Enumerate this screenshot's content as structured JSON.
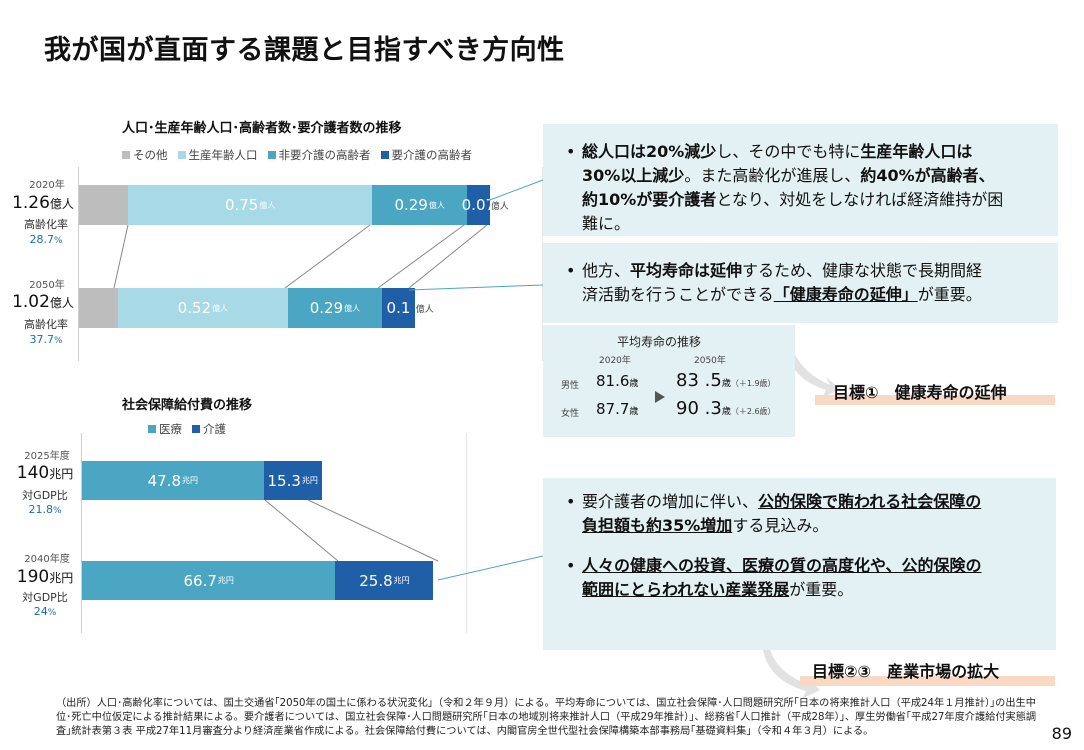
{
  "page_title": "我が国が直面する課題と目指すべき方向性",
  "colors": {
    "other": "#bdbdbd",
    "working": "#a8d9e6",
    "noncare": "#4aa6c2",
    "care": "#1f5fa8",
    "medical": "#4aa6c2",
    "kaigo": "#1f5fa8",
    "box": "#e4f1f4",
    "goal_bar": "#f9d9c3"
  },
  "chart_data": [
    {
      "type": "bar",
      "orientation": "horizontal-stacked",
      "title": "人口･生産年齢人口･高齢者数･要介護者数の推移",
      "legend": [
        "その他",
        "生産年齢人口",
        "非要介護の高齢者",
        "要介護の高齢者"
      ],
      "legend_position": "top",
      "rows": [
        {
          "year": "2020年",
          "total": "1.26",
          "total_unit": "億人",
          "ratio_label": "高齢化率",
          "ratio": "28.7",
          "ratio_unit": "%",
          "values": [
            0.15,
            0.75,
            0.29,
            0.07
          ],
          "labels": [
            null,
            {
              "v": "0.75",
              "u": "億人"
            },
            {
              "v": "0.29",
              "u": "億人"
            },
            {
              "v": "0.07",
              "u": "億人"
            }
          ]
        },
        {
          "year": "2050年",
          "total": "1.02",
          "total_unit": "億人",
          "ratio_label": "高齢化率",
          "ratio": "37.7",
          "ratio_unit": "%",
          "values": [
            0.12,
            0.52,
            0.29,
            0.1
          ],
          "labels": [
            null,
            {
              "v": "0.52",
              "u": "億人"
            },
            {
              "v": "0.29",
              "u": "億人"
            },
            {
              "v": "0.1",
              "u": "億人"
            }
          ]
        }
      ],
      "unit": "億人"
    },
    {
      "type": "bar",
      "orientation": "horizontal-stacked",
      "title": "社会保障給付費の推移",
      "legend": [
        "医療",
        "介護"
      ],
      "legend_position": "top",
      "rows": [
        {
          "year": "2025年度",
          "total": "140",
          "total_unit": "兆円",
          "ratio_label": "対GDP比",
          "ratio": "21.8",
          "ratio_unit": "%",
          "values": [
            47.8,
            15.3
          ],
          "labels": [
            {
              "v": "47.8",
              "u": "兆円"
            },
            {
              "v": "15.3",
              "u": "兆円"
            }
          ]
        },
        {
          "year": "2040年度",
          "total": "190",
          "total_unit": "兆円",
          "ratio_label": "対GDP比",
          "ratio": "24",
          "ratio_unit": "%",
          "values": [
            66.7,
            25.8
          ],
          "labels": [
            {
              "v": "66.7",
              "u": "兆円"
            },
            {
              "v": "25.8",
              "u": "兆円"
            }
          ]
        }
      ],
      "unit": "兆円"
    }
  ],
  "box1": {
    "dot": "•",
    "line1": [
      {
        "t": "総人口は20%減少",
        "b": true
      },
      {
        "t": "し、その中でも特に"
      },
      {
        "t": "生産年齢人口は",
        "b": true
      }
    ],
    "line2": [
      {
        "t": "30%以上減少",
        "b": true
      },
      {
        "t": "。また高齢化が進展し、"
      },
      {
        "t": "約40%が高齢者、",
        "b": true
      }
    ],
    "line3": [
      {
        "t": "約10%が要介護者",
        "b": true
      },
      {
        "t": "となり、対処をしなければ経済維持が困"
      }
    ],
    "line4": [
      {
        "t": "難に。"
      }
    ]
  },
  "box2": {
    "dot": "•",
    "line1": [
      {
        "t": "他方、"
      },
      {
        "t": "平均寿命は延伸",
        "b": true
      },
      {
        "t": "するため、健康な状態で長期間経"
      }
    ],
    "line2": [
      {
        "t": "済活動を行うことができる"
      },
      {
        "t": "「健康寿命の延伸」",
        "u": true
      },
      {
        "t": "が重要。"
      }
    ]
  },
  "life": {
    "title": "平均寿命の推移",
    "y1": "2020年",
    "y2": "2050年",
    "male": "男性",
    "female": "女性",
    "male_2020": "81.6",
    "female_2020": "87.7",
    "male_2050": "83 .5",
    "female_2050": "90 .3",
    "unit": "歳",
    "male_diff": "（＋1.9歳）",
    "female_diff": "（＋2.6歳）"
  },
  "goal1": "目標①　健康寿命の延伸",
  "box3": {
    "dot": "•",
    "b1_line1": [
      {
        "t": "要介護者の増加に伴い、"
      },
      {
        "t": "公的保険で賄われる社会保障の",
        "u": true
      }
    ],
    "b1_line2": [
      {
        "t": "負担額も約35%増加",
        "u": true
      },
      {
        "t": "する見込み。"
      }
    ],
    "b2_line1": [
      {
        "t": "人々の健康への投資、医療の質の高度化や、公的保険の",
        "u": true
      }
    ],
    "b2_line2": [
      {
        "t": "範囲にとらわれない産業発展",
        "u": true
      },
      {
        "t": "が重要。"
      }
    ]
  },
  "goal2": "目標②③　産業市場の拡大",
  "source": "（出所）人口･高齢化率については、国土交通省｢2050年の国土に係わる状況変化｣（令和２年９月）による。平均寿命については、国立社会保障･人口問題研究所｢日本の将来推計人口（平成24年１月推計）｣の出生中位･死亡中位仮定による推計結果による。要介護者については、国立社会保障･人口問題研究所｢日本の地域別将来推計人口（平成29年推計）｣、総務省｢人口推計（平成28年）｣、厚生労働省｢平成27年度介護給付実態調査｣統計表第３表 平成27年11月審査分より経済産業省作成による。社会保障給付費については、内閣官房全世代型社会保障構築本部事務局｢基礎資料集｣（令和４年３月）による。",
  "page_number": "89"
}
